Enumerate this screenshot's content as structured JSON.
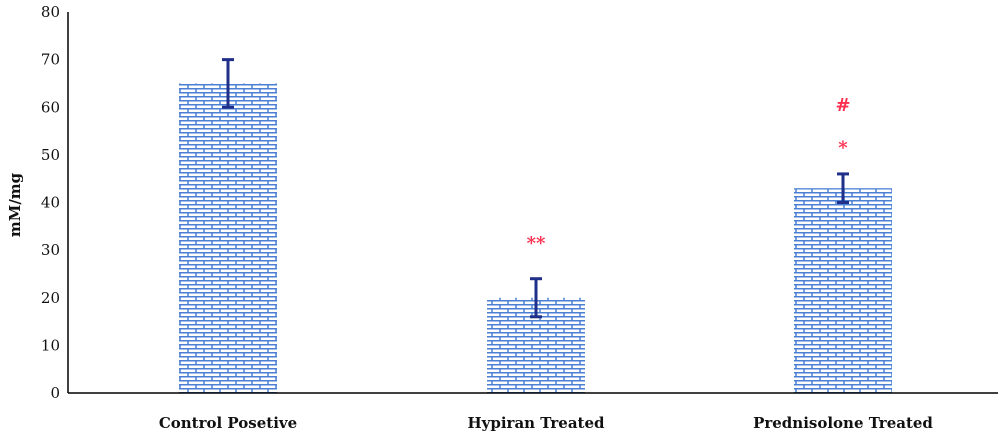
{
  "chart_data": {
    "type": "bar",
    "title": "",
    "xlabel": "",
    "ylabel": "mM/mg",
    "ylim": [
      0,
      80
    ],
    "yticks": [
      0,
      10,
      20,
      30,
      40,
      50,
      60,
      70,
      80
    ],
    "grid": false,
    "categories": [
      "Control Posetive",
      "Hypiran Treated",
      "Prednisolone Treated"
    ],
    "values": [
      65,
      20,
      43
    ],
    "error": [
      5,
      4,
      3
    ],
    "annotations": [
      {
        "category_index": 1,
        "text": "**",
        "y": 31.5
      },
      {
        "category_index": 2,
        "text": "*",
        "y": 51.5
      },
      {
        "category_index": 2,
        "text": "#",
        "y": 60.5
      }
    ],
    "colors": {
      "bar_fill": "#ffffff",
      "bar_pattern": "#4a7fd4",
      "error_bar": "#1f2f8a",
      "annotation": "#ff2f4f",
      "axis": "#000000"
    }
  }
}
